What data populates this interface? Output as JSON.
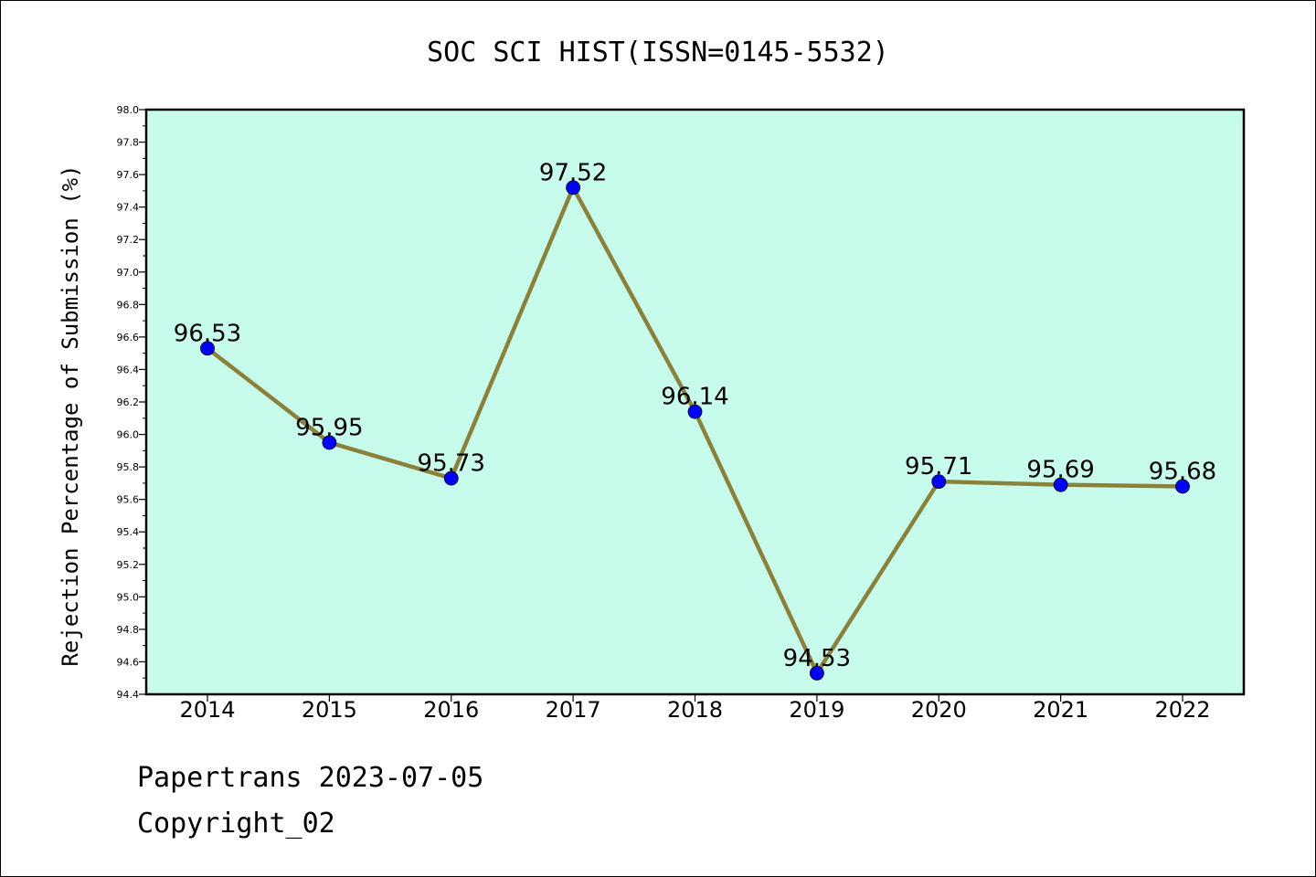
{
  "chart_data": {
    "type": "line",
    "title": "SOC SCI HIST(ISSN=0145-5532)",
    "xlabel": "",
    "ylabel": "Rejection Percentage of Submission (%)",
    "categories": [
      "2014",
      "2015",
      "2016",
      "2017",
      "2018",
      "2019",
      "2020",
      "2021",
      "2022"
    ],
    "series": [
      {
        "values": [
          96.53,
          95.95,
          95.73,
          97.52,
          96.14,
          94.53,
          95.71,
          95.69,
          95.68
        ],
        "labels": [
          "96.53",
          "95.95",
          "95.73",
          "97.52",
          "96.14",
          "94.53",
          "95.71",
          "95.69",
          "95.68"
        ]
      }
    ],
    "ylim": [
      94.4,
      98.0
    ],
    "yticks": [
      "94.4",
      "94.6",
      "94.8",
      "95.0",
      "95.2",
      "95.4",
      "95.6",
      "95.8",
      "96.0",
      "96.2",
      "96.4",
      "96.6",
      "96.8",
      "97.0",
      "97.2",
      "97.4",
      "97.6",
      "97.8",
      "98.0"
    ],
    "grid": false,
    "colors": {
      "plot_background": "#c7fcec",
      "line": "#8b8139",
      "marker": "#0000ff"
    }
  },
  "footer": {
    "line1": "Papertrans 2023-07-05",
    "line2": "Copyright_02"
  }
}
